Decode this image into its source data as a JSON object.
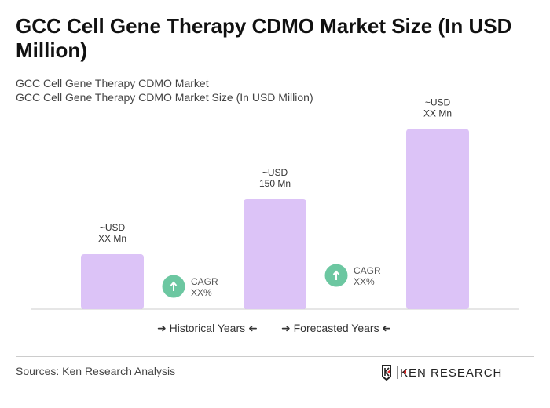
{
  "title": "GCC Cell Gene Therapy CDMO Market Size (In USD Million)",
  "subtitle1": "GCC Cell Gene Therapy CDMO Market",
  "subtitle2": "GCC Cell Gene Therapy CDMO Market Size (In USD Million)",
  "chart_data": {
    "type": "bar",
    "categories": [
      "",
      "",
      ""
    ],
    "values": [
      75,
      150,
      246
    ],
    "data_labels": [
      [
        "~USD",
        "XX Mn"
      ],
      [
        "~USD",
        "150 Mn"
      ],
      [
        "~USD",
        "XX Mn"
      ]
    ],
    "bar_color": "#dcc3f7",
    "cagr": [
      {
        "label": "CAGR",
        "value": "XX%"
      },
      {
        "label": "CAGR",
        "value": "XX%"
      }
    ],
    "cagr_color": "#6cc7a1",
    "ylim": [
      0,
      260
    ],
    "grid": false
  },
  "legend": {
    "historical": "Historical Years",
    "forecasted": "Forecasted Years"
  },
  "sources": "Sources: Ken Research Analysis",
  "logo_text": "KEN RESEARCH"
}
